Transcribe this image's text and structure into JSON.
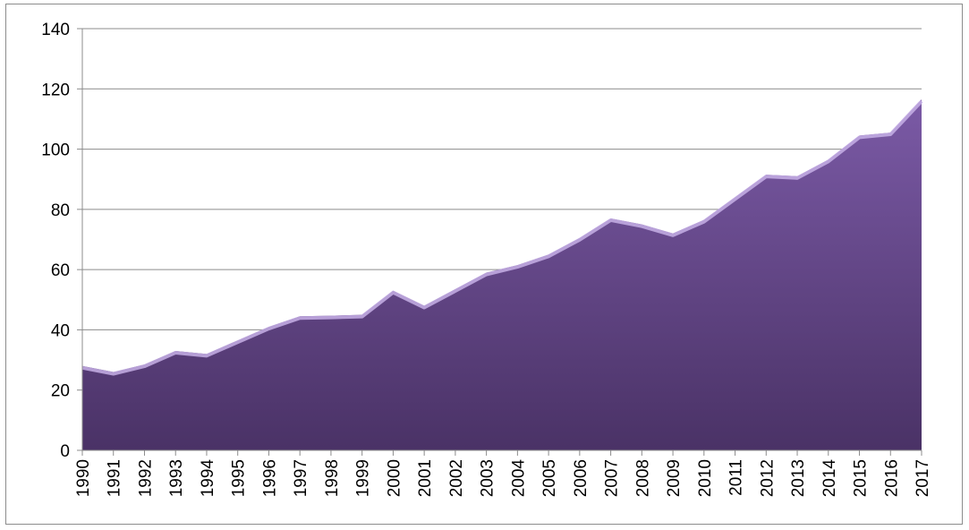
{
  "chart_data": {
    "type": "area",
    "x": [
      "1990",
      "1991",
      "1992",
      "1993",
      "1994",
      "1995",
      "1996",
      "1997",
      "1998",
      "1999",
      "2000",
      "2001",
      "2002",
      "2003",
      "2004",
      "2005",
      "2006",
      "2007",
      "2008",
      "2009",
      "2010",
      "2011",
      "2012",
      "2013",
      "2014",
      "2015",
      "2016",
      "2017"
    ],
    "values": [
      28,
      26,
      28.5,
      33,
      32,
      36.5,
      41,
      44.5,
      44.7,
      45,
      53,
      48,
      53.5,
      59,
      61.5,
      65,
      70.5,
      77,
      75,
      72,
      76.5,
      84,
      91.5,
      91,
      96.5,
      104.5,
      105.5,
      116.5
    ],
    "ylim": [
      0,
      140
    ],
    "yticks": [
      "0",
      "20",
      "40",
      "60",
      "80",
      "100",
      "120",
      "140"
    ],
    "xlabel": "",
    "ylabel": "",
    "title": "",
    "grid": true,
    "legend": "none",
    "colors": {
      "fill_top": "#7b5aa6",
      "fill_bottom": "#4a3266",
      "highlight": "#c7b0e6",
      "gridline": "#8c8c8c",
      "axis": "#8c8c8c"
    }
  }
}
